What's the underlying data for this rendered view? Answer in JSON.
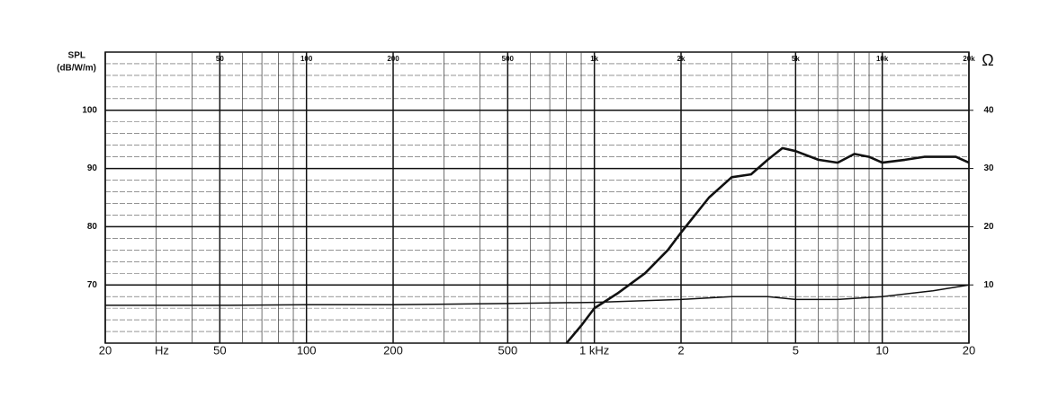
{
  "chart_data": {
    "type": "line",
    "y_label": [
      "SPL",
      "(dB/W/m)"
    ],
    "y2_label": "Ω",
    "x_unit_label": "Hz",
    "log_x": true,
    "grid": true,
    "xlim": [
      20,
      20000
    ],
    "ylim": [
      60,
      110
    ],
    "y2lim": [
      0,
      50
    ],
    "yticks": [
      70,
      80,
      90,
      100
    ],
    "y2ticks": [
      10,
      20,
      30,
      40
    ],
    "yticks_minor": [
      62,
      64,
      66,
      68,
      72,
      74,
      76,
      78,
      82,
      84,
      86,
      88,
      92,
      94,
      96,
      98,
      102,
      104,
      106,
      108
    ],
    "xticks": [
      20,
      50,
      100,
      200,
      500,
      {
        "value": 1000,
        "label": "1 kHz"
      },
      {
        "value": 2000,
        "label": "2"
      },
      {
        "value": 5000,
        "label": "5"
      },
      {
        "value": 10000,
        "label": "10"
      },
      {
        "value": 20000,
        "label": "20"
      }
    ],
    "x2ticks": [
      50,
      100,
      200,
      500,
      {
        "value": 1000,
        "label": "1k"
      },
      {
        "value": 2000,
        "label": "2k"
      },
      {
        "value": 5000,
        "label": "5k"
      },
      {
        "value": 10000,
        "label": "10k"
      },
      {
        "value": 20000,
        "label": "20k"
      }
    ],
    "xticks_minor": [
      30,
      40,
      60,
      70,
      80,
      90,
      300,
      400,
      600,
      700,
      800,
      900,
      3000,
      4000,
      6000,
      7000,
      8000,
      9000
    ],
    "series": [
      {
        "name": "SPL",
        "color": "#111111",
        "x": [
          800,
          900,
          1000,
          1200,
          1500,
          1800,
          2000,
          2500,
          3000,
          3500,
          4000,
          4500,
          5000,
          6000,
          7000,
          8000,
          9000,
          10000,
          12000,
          14000,
          16000,
          18000,
          20000
        ],
        "values": [
          60,
          63,
          66,
          68.5,
          72,
          76,
          79,
          85,
          88.5,
          89,
          91.5,
          93.5,
          93,
          91.5,
          91,
          92.5,
          92,
          91,
          91.5,
          92,
          92,
          92,
          91
        ]
      },
      {
        "name": "Impedance",
        "color": "#111111",
        "axis": "y2",
        "x": [
          20,
          50,
          100,
          200,
          500,
          1000,
          2000,
          3000,
          4000,
          5000,
          7000,
          10000,
          15000,
          20000
        ],
        "values": [
          6.5,
          6.5,
          6.6,
          6.6,
          6.8,
          7,
          7.5,
          8,
          8,
          7.5,
          7.5,
          8,
          9,
          10
        ]
      }
    ]
  }
}
